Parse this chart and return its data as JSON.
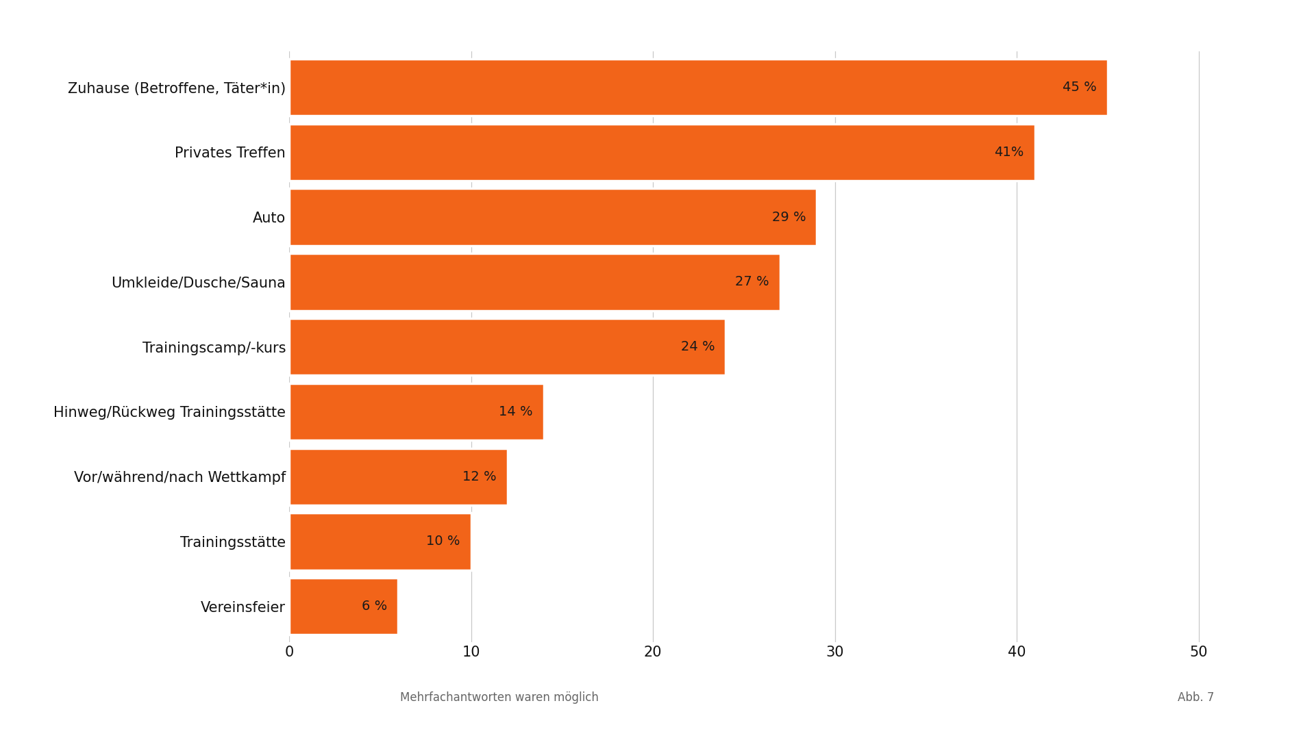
{
  "categories": [
    "Vereinsfeier",
    "Trainingsstätte",
    "Vor/während/nach Wettkampf",
    "Hinweg/Rückweg Trainingsstätte",
    "Trainingscamp/-kurs",
    "Umkleide/Dusche/Sauna",
    "Auto",
    "Privates Treffen",
    "Zuhause (Betroffene, Täter*in)"
  ],
  "values": [
    6,
    10,
    12,
    14,
    24,
    27,
    29,
    41,
    45
  ],
  "bar_labels": [
    "6 %",
    "10 %",
    "12 %",
    "14 %",
    "24 %",
    "27 %",
    "29 %",
    "41%",
    "45 %"
  ],
  "bar_color": "#F26419",
  "background_color": "#FFFFFF",
  "xlim": [
    0,
    52
  ],
  "xticks": [
    0,
    10,
    20,
    30,
    40,
    50
  ],
  "xlabel_note": "Mehrfachantworten waren möglich",
  "annotation": "Abb. 7",
  "grid_color": "#C8C8C8",
  "label_fontsize": 15,
  "tick_fontsize": 15,
  "bar_label_fontsize": 14,
  "note_fontsize": 12,
  "bar_height": 0.88
}
